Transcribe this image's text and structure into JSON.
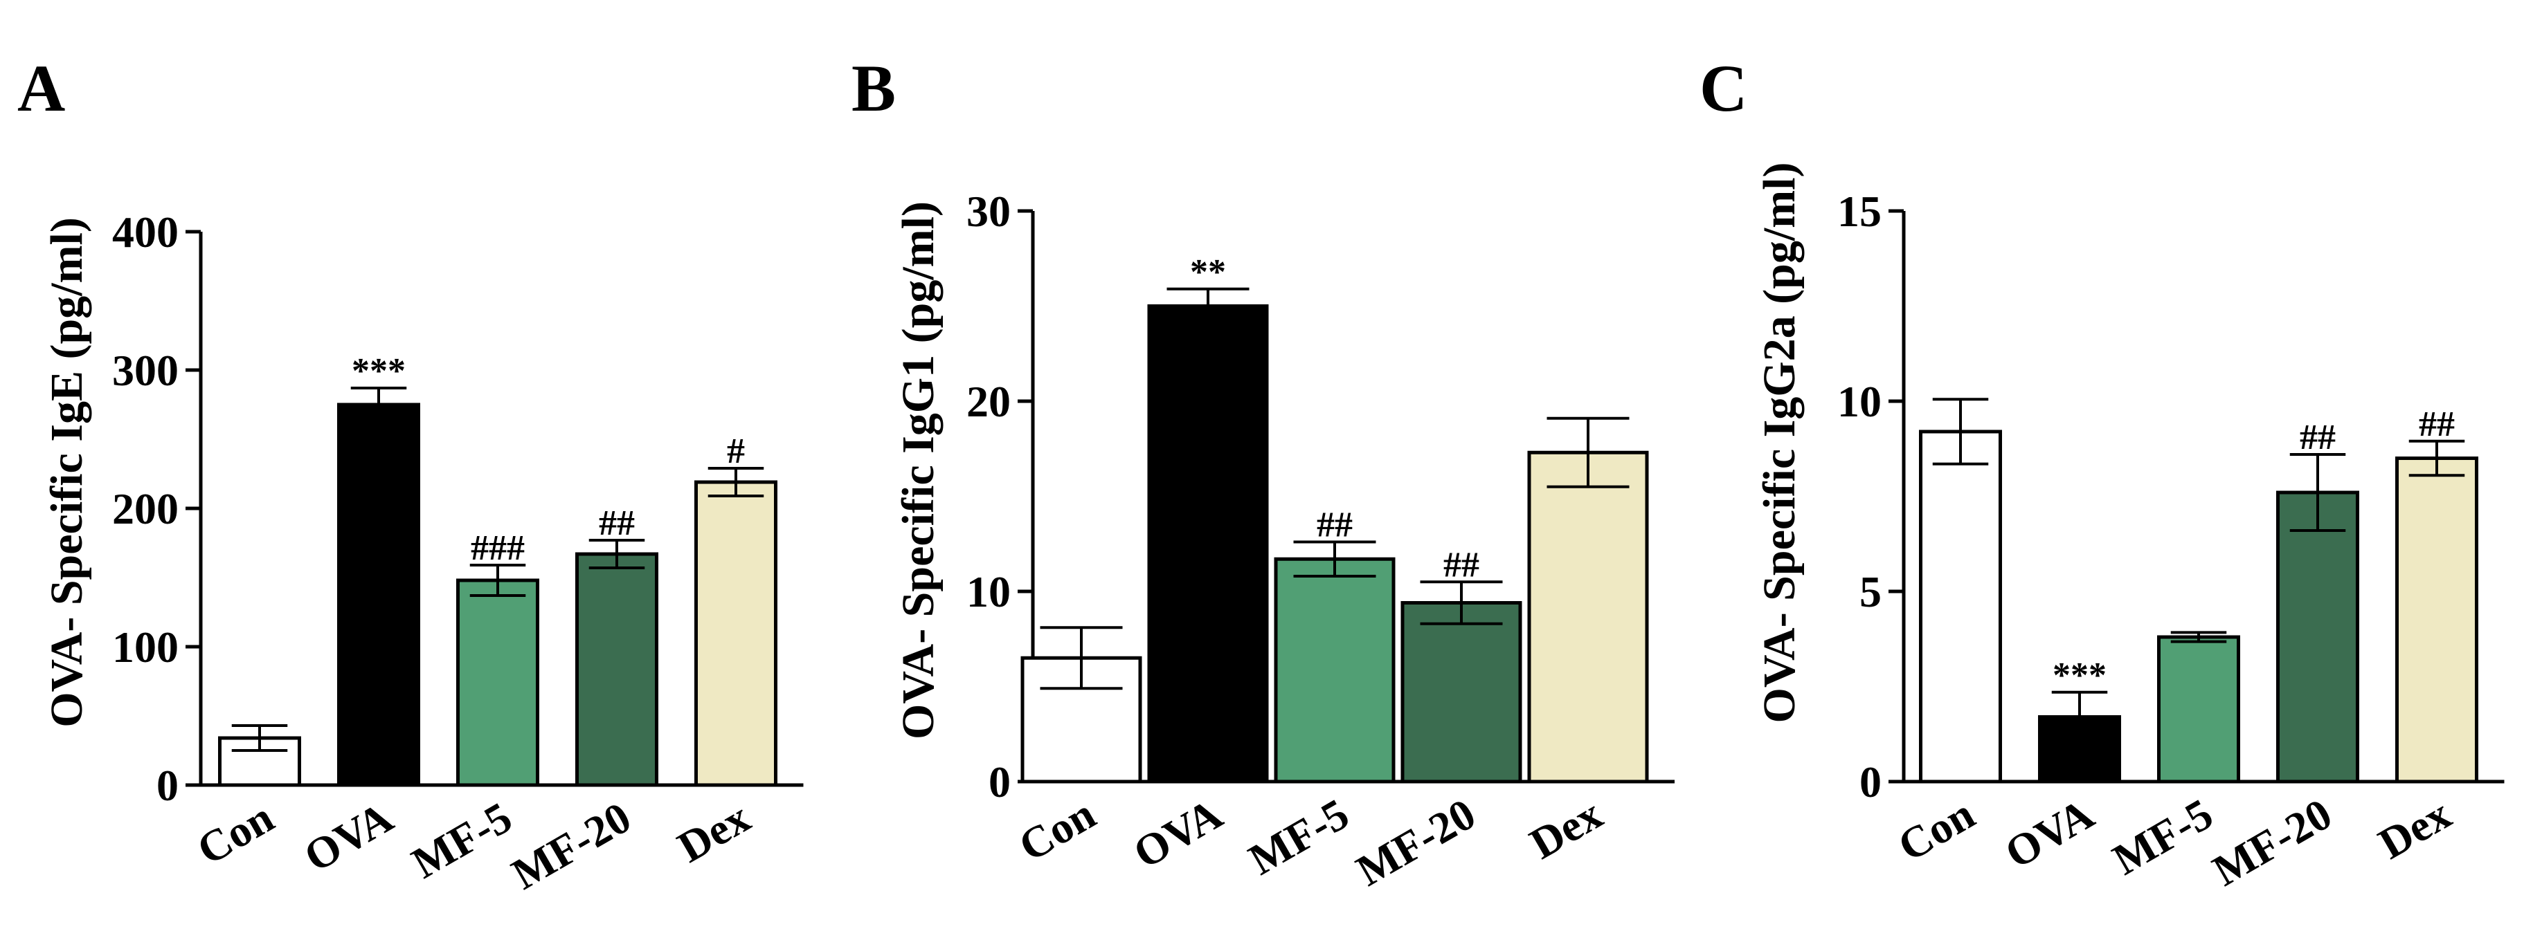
{
  "colors": {
    "Con": "#ffffff",
    "OVA": "#000000",
    "MF-5": "#519f74",
    "MF-20": "#3b6d50",
    "Dex": "#efe9c3"
  },
  "chart_data": [
    {
      "panel": "A",
      "type": "bar",
      "ylabel": "OVA- Specific IgE (pg/ml)",
      "ylim": [
        0,
        400
      ],
      "yticks": [
        0,
        100,
        200,
        300,
        400
      ],
      "categories": [
        "Con",
        "OVA",
        "MF-5",
        "MF-20",
        "Dex"
      ],
      "values": [
        34,
        275,
        148,
        167,
        219
      ],
      "errors": [
        9,
        12,
        11,
        10,
        10
      ],
      "significance": [
        "",
        "***",
        "###",
        "##",
        "#"
      ]
    },
    {
      "panel": "B",
      "type": "bar",
      "ylabel": "OVA- Specific IgG1 (pg/ml)",
      "ylim": [
        0,
        30
      ],
      "yticks": [
        0,
        10,
        20,
        30
      ],
      "categories": [
        "Con",
        "OVA",
        "MF-5",
        "MF-20",
        "Dex"
      ],
      "values": [
        6.5,
        25.0,
        11.7,
        9.4,
        17.3
      ],
      "errors": [
        1.6,
        0.9,
        0.9,
        1.1,
        1.8
      ],
      "significance": [
        "",
        "**",
        "##",
        "##",
        ""
      ]
    },
    {
      "panel": "C",
      "type": "bar",
      "ylabel": "OVA- Specific IgG2a (pg/ml)",
      "ylim": [
        0,
        15
      ],
      "yticks": [
        0,
        5,
        10,
        15
      ],
      "categories": [
        "Con",
        "OVA",
        "MF-5",
        "MF-20",
        "Dex"
      ],
      "values": [
        9.2,
        1.7,
        3.8,
        7.6,
        8.5
      ],
      "errors": [
        0.85,
        0.65,
        0.12,
        1.0,
        0.45
      ],
      "significance": [
        "",
        "***",
        "",
        "##",
        "##"
      ]
    }
  ]
}
